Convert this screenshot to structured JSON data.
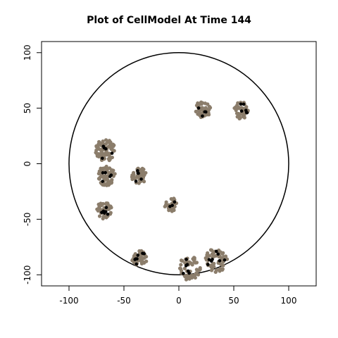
{
  "chart_data": {
    "type": "scatter",
    "title": "Plot of CellModel At Time 144",
    "xlabel": "",
    "ylabel": "",
    "xlim": [
      -125,
      125
    ],
    "ylim": [
      -110,
      110
    ],
    "x_ticks": [
      -100,
      -50,
      0,
      50,
      100
    ],
    "y_ticks": [
      -100,
      -50,
      0,
      50,
      100
    ],
    "boundary_circle": {
      "center": [
        0,
        0
      ],
      "radius": 100,
      "color": "#000000"
    },
    "colors": {
      "cell": "#8b7d6b",
      "highlight": "#000000",
      "axis": "#000000"
    },
    "clusters": [
      {
        "center": [
          22,
          49
        ],
        "radius": 7,
        "count": 45,
        "dark_count": 5
      },
      {
        "center": [
          57,
          48
        ],
        "radius": 7,
        "count": 40,
        "dark_count": 6
      },
      {
        "center": [
          -67,
          12
        ],
        "radius": 9,
        "count": 70,
        "dark_count": 5
      },
      {
        "center": [
          -66,
          -11
        ],
        "radius": 8,
        "count": 60,
        "dark_count": 5
      },
      {
        "center": [
          -36,
          -11
        ],
        "radius": 7,
        "count": 40,
        "dark_count": 5
      },
      {
        "center": [
          -68,
          -42
        ],
        "radius": 7,
        "count": 45,
        "dark_count": 6
      },
      {
        "center": [
          -7,
          -37
        ],
        "radius": 6,
        "count": 30,
        "dark_count": 3
      },
      {
        "center": [
          -36,
          -85
        ],
        "radius": 7,
        "count": 40,
        "dark_count": 7
      },
      {
        "center": [
          10,
          -94
        ],
        "radius": 10,
        "count": 55,
        "dark_count": 7
      },
      {
        "center": [
          34,
          -87
        ],
        "radius": 10,
        "count": 60,
        "dark_count": 8
      }
    ]
  }
}
